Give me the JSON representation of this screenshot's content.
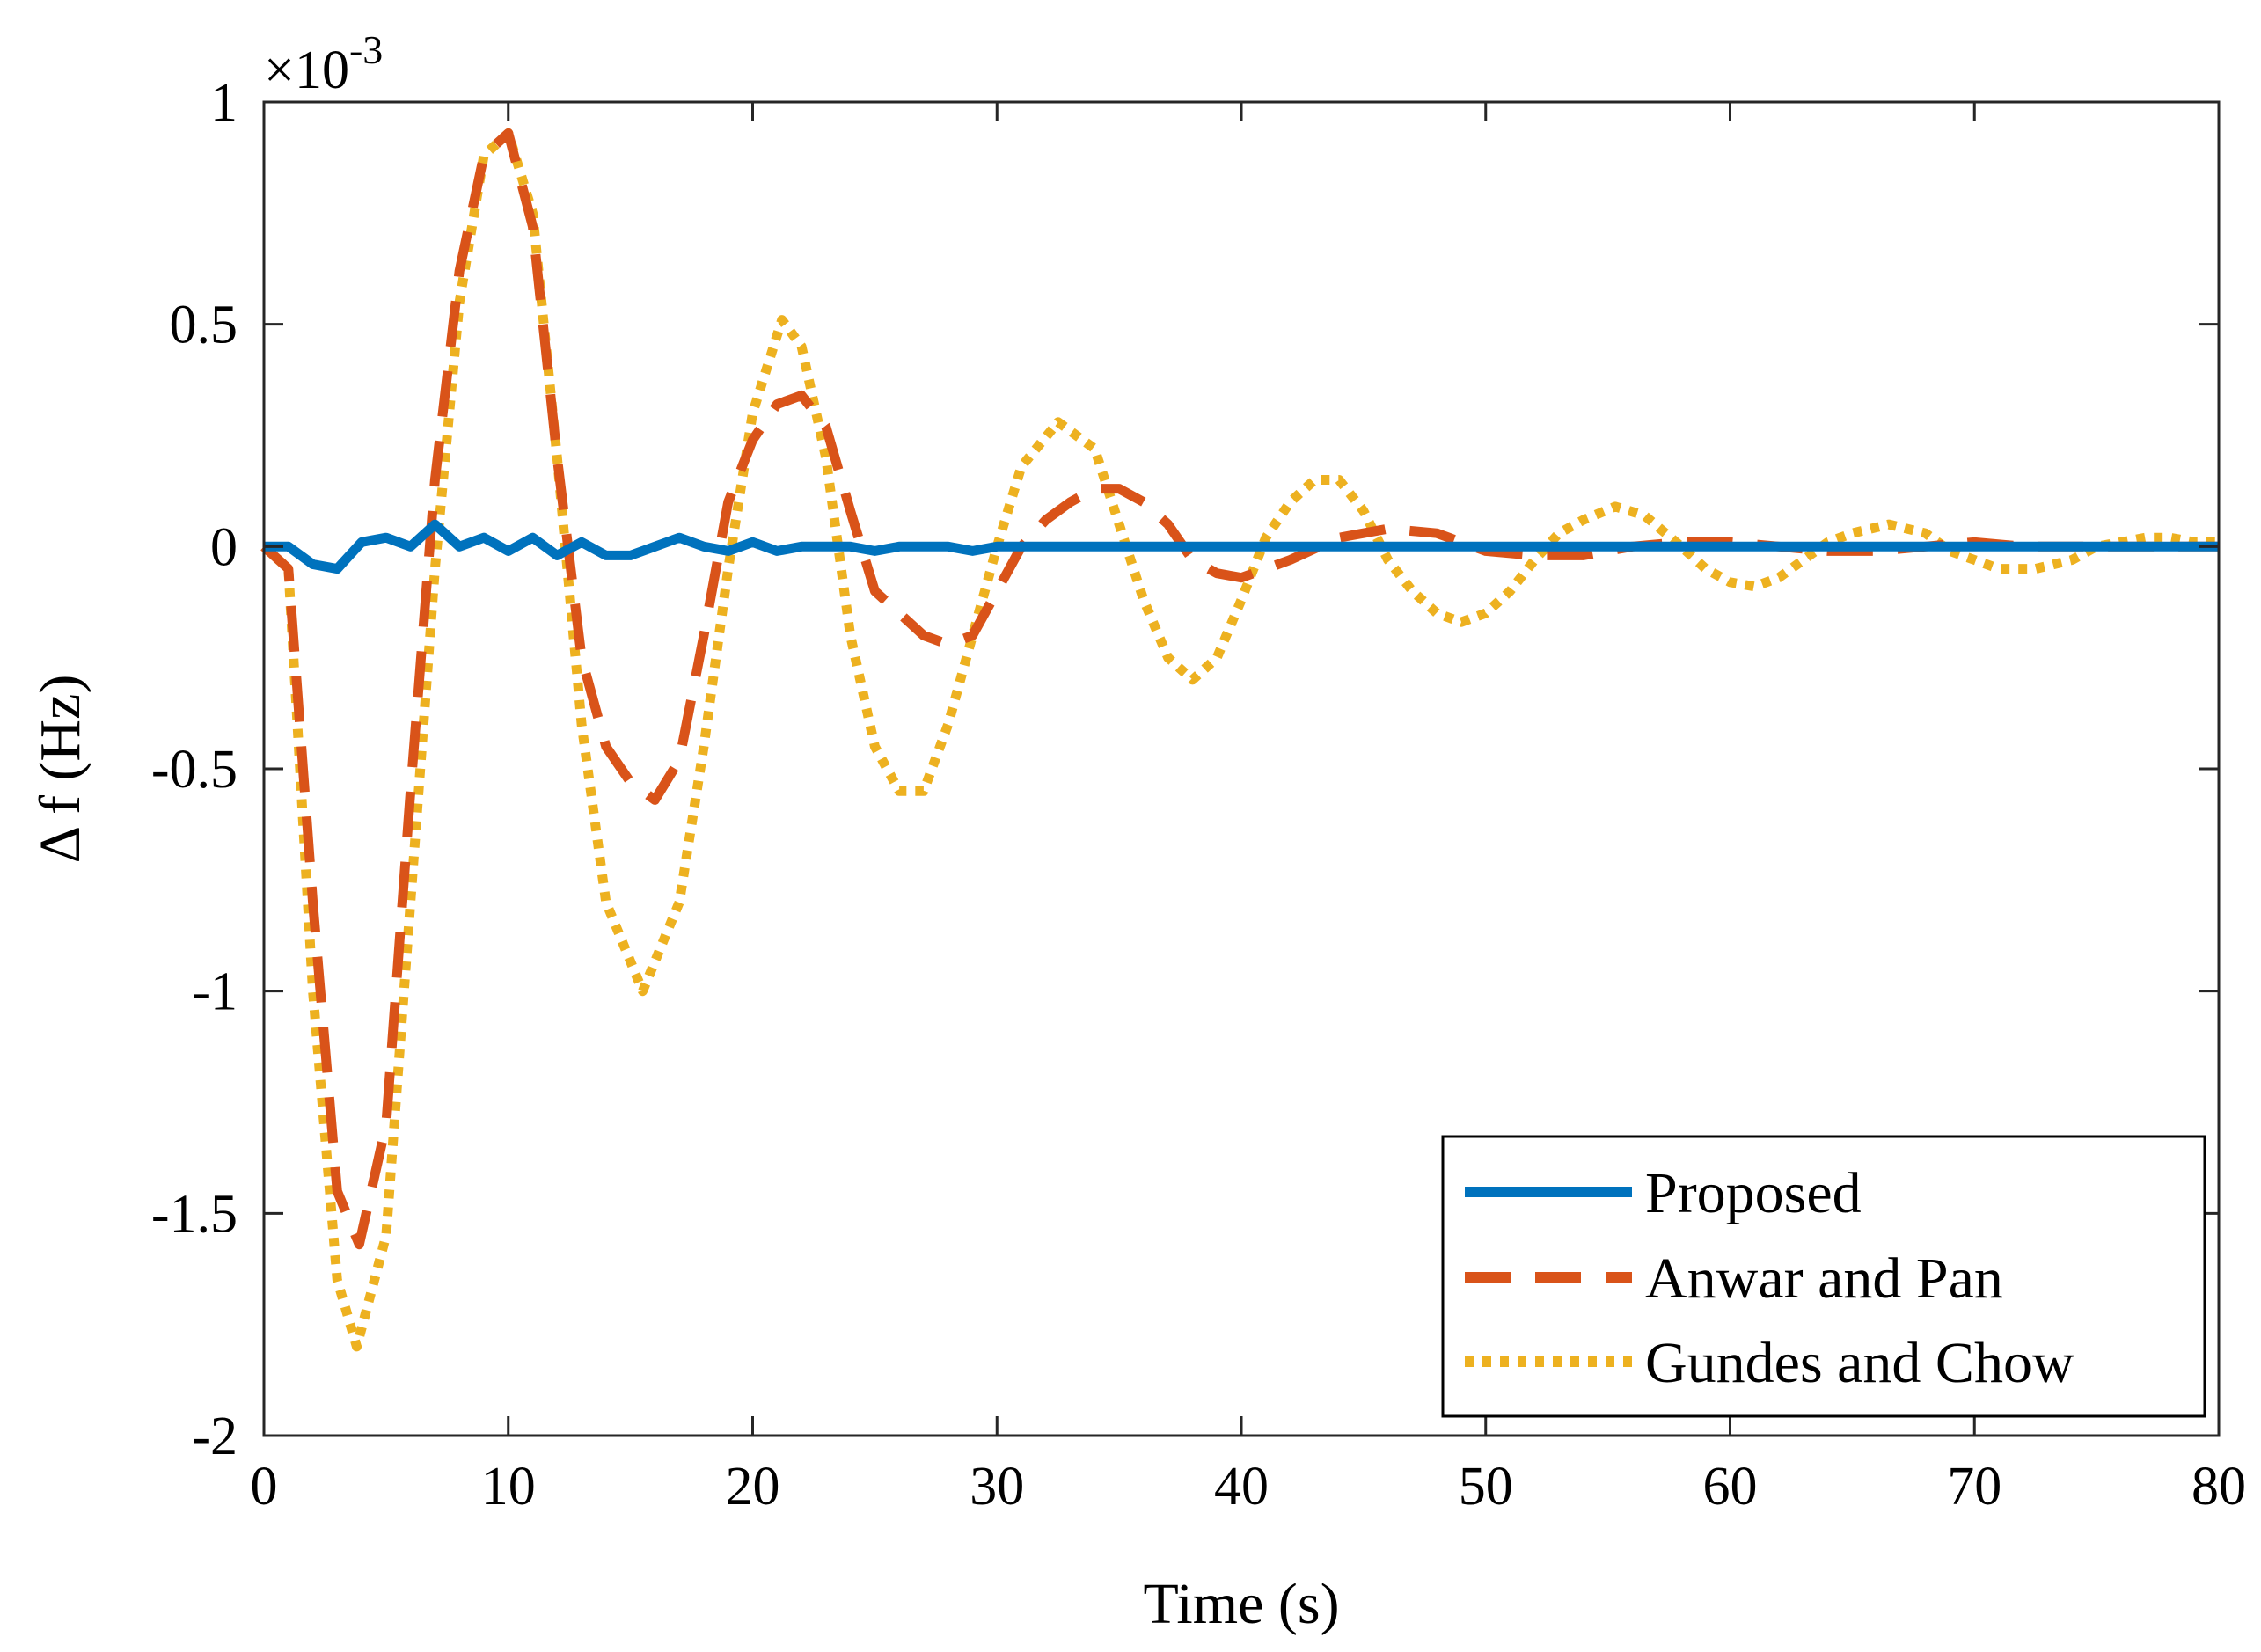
{
  "chart_data": {
    "type": "line",
    "title": "",
    "xlabel": "Time (s)",
    "ylabel": "Δ f (Hz)",
    "y_scale_label": "×10",
    "y_scale_exponent": "-3",
    "xlim": [
      0,
      80
    ],
    "ylim": [
      -2,
      1
    ],
    "xticks": [
      0,
      10,
      20,
      30,
      40,
      50,
      60,
      70,
      80
    ],
    "xtick_labels": [
      "0",
      "10",
      "20",
      "30",
      "40",
      "50",
      "60",
      "70",
      "80"
    ],
    "yticks": [
      -2,
      -1.5,
      -1,
      -0.5,
      0,
      0.5,
      1
    ],
    "ytick_labels": [
      "-2",
      "-1.5",
      "-1",
      "-0.5",
      "0",
      "0.5",
      "1"
    ],
    "grid": false,
    "legend_position": "bottom-right",
    "series": [
      {
        "name": "Proposed",
        "color": "#0072BD",
        "style": "solid",
        "x": [
          0,
          1,
          2,
          3,
          4,
          5,
          6,
          7,
          8,
          9,
          10,
          11,
          12,
          13,
          14,
          15,
          16,
          17,
          18,
          19,
          20,
          21,
          22,
          23,
          24,
          25,
          26,
          27,
          28,
          29,
          30,
          32,
          34,
          36,
          38,
          40,
          42,
          44,
          46,
          48,
          50,
          55,
          60,
          65,
          70,
          75,
          80
        ],
        "y": [
          0,
          0,
          -0.04,
          -0.05,
          0.01,
          0.02,
          0.0,
          0.05,
          0.0,
          0.02,
          -0.01,
          0.02,
          -0.02,
          0.01,
          -0.02,
          -0.02,
          0.0,
          0.02,
          0.0,
          -0.01,
          0.01,
          -0.01,
          0.0,
          0.0,
          0.0,
          -0.01,
          0.0,
          0.0,
          0.0,
          -0.01,
          0.0,
          0.0,
          0.0,
          0.0,
          0.0,
          0.0,
          0.0,
          0.0,
          0.0,
          0.0,
          0.0,
          0.0,
          0.0,
          0.0,
          0.0,
          0.0,
          0.0
        ]
      },
      {
        "name": "Anwar and Pan",
        "color": "#D95319",
        "style": "dashed",
        "x": [
          0,
          1,
          2,
          3,
          3.9,
          5,
          6,
          7,
          8,
          9,
          10,
          11,
          12,
          13,
          14,
          15,
          16,
          17,
          18,
          19,
          20,
          21,
          22,
          23,
          24,
          25,
          26,
          27,
          28,
          29,
          30,
          31,
          32,
          33,
          34,
          35,
          36,
          37,
          38,
          39,
          40,
          42,
          44,
          46,
          48,
          50,
          52,
          54,
          56,
          58,
          60,
          62,
          64,
          66,
          68,
          70,
          72,
          74,
          76,
          78,
          80
        ],
        "y": [
          0,
          -0.05,
          -0.8,
          -1.45,
          -1.57,
          -1.3,
          -0.55,
          0.15,
          0.62,
          0.88,
          0.93,
          0.72,
          0.2,
          -0.25,
          -0.45,
          -0.53,
          -0.57,
          -0.48,
          -0.2,
          0.1,
          0.24,
          0.32,
          0.34,
          0.27,
          0.08,
          -0.1,
          -0.15,
          -0.2,
          -0.22,
          -0.2,
          -0.1,
          0.0,
          0.06,
          0.1,
          0.13,
          0.13,
          0.1,
          0.05,
          -0.03,
          -0.06,
          -0.07,
          -0.03,
          0.02,
          0.04,
          0.03,
          -0.01,
          -0.02,
          -0.02,
          0.0,
          0.01,
          0.01,
          0.0,
          -0.01,
          -0.01,
          0.0,
          0.01,
          0.0,
          0.0,
          0.0,
          0.0,
          0.0
        ]
      },
      {
        "name": "Gundes and Chow",
        "color": "#EDB120",
        "style": "dotted",
        "x": [
          0,
          1,
          2,
          3,
          3.8,
          5,
          6,
          7,
          8,
          9,
          10,
          11,
          12,
          13,
          14,
          15.5,
          17,
          18,
          19,
          20,
          21.2,
          22,
          23,
          24,
          25,
          26,
          27,
          28,
          29,
          30,
          31,
          32.5,
          34,
          35,
          36,
          37,
          38,
          39,
          40,
          41,
          42,
          43,
          44,
          45,
          46,
          47,
          48,
          49,
          50,
          51,
          52,
          53,
          54,
          55.3,
          56.5,
          58,
          59,
          60,
          61,
          62,
          63,
          64,
          65,
          66.5,
          68,
          69,
          70,
          71,
          72.5,
          74,
          75,
          76,
          77,
          78,
          79,
          80
        ],
        "y": [
          0,
          -0.05,
          -1.0,
          -1.65,
          -1.8,
          -1.55,
          -0.8,
          -0.05,
          0.55,
          0.88,
          0.93,
          0.75,
          0.2,
          -0.4,
          -0.8,
          -1.0,
          -0.8,
          -0.45,
          -0.05,
          0.3,
          0.51,
          0.45,
          0.2,
          -0.2,
          -0.45,
          -0.55,
          -0.55,
          -0.4,
          -0.2,
          0.0,
          0.18,
          0.28,
          0.22,
          0.05,
          -0.12,
          -0.25,
          -0.3,
          -0.25,
          -0.12,
          0.02,
          0.1,
          0.15,
          0.15,
          0.08,
          -0.03,
          -0.1,
          -0.15,
          -0.17,
          -0.15,
          -0.1,
          -0.03,
          0.03,
          0.06,
          0.09,
          0.07,
          0.0,
          -0.05,
          -0.08,
          -0.09,
          -0.07,
          -0.03,
          0.01,
          0.03,
          0.05,
          0.03,
          -0.01,
          -0.03,
          -0.05,
          -0.05,
          -0.03,
          0.0,
          0.01,
          0.02,
          0.02,
          0.01,
          0.01
        ]
      }
    ]
  }
}
